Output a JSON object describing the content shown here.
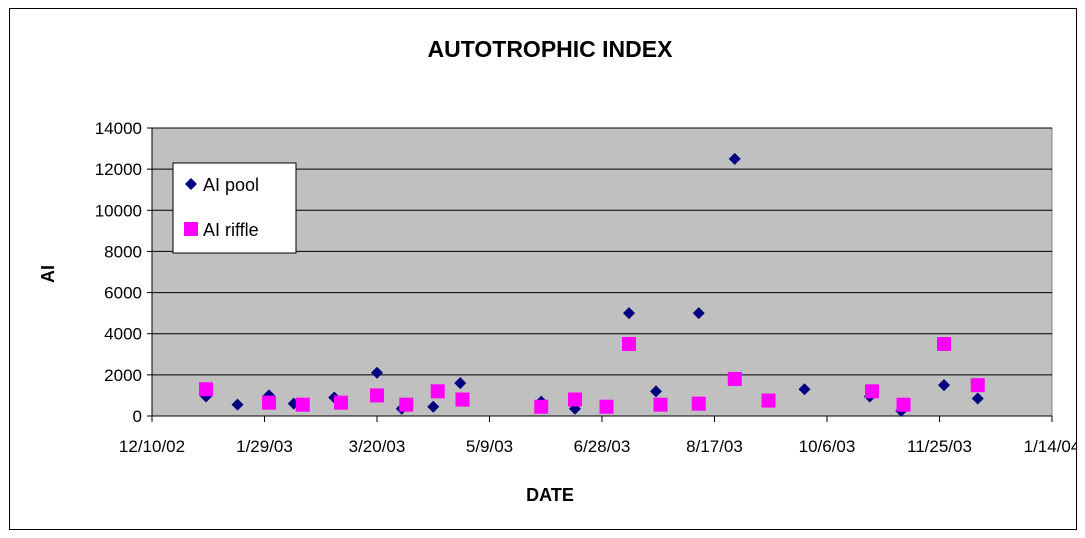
{
  "chart_data": {
    "type": "scatter",
    "title": "AUTOTROPHIC INDEX",
    "xlabel": "DATE",
    "ylabel": "AI",
    "xlim": [
      "2002-12-10",
      "2004-01-14"
    ],
    "ylim": [
      0,
      14000
    ],
    "x_ticks": [
      "2002-12-10",
      "2003-01-29",
      "2003-03-20",
      "2003-05-09",
      "2003-06-28",
      "2003-08-17",
      "2003-10-06",
      "2003-11-25",
      "2004-01-14"
    ],
    "x_tick_labels": [
      "12/10/02",
      "1/29/03",
      "3/20/03",
      "5/9/03",
      "6/28/03",
      "8/17/03",
      "10/6/03",
      "11/25/03",
      "1/14/04"
    ],
    "y_ticks": [
      0,
      2000,
      4000,
      6000,
      8000,
      10000,
      12000,
      14000
    ],
    "y_tick_labels": [
      "0",
      "2000",
      "4000",
      "6000",
      "8000",
      "10000",
      "12000",
      "14000"
    ],
    "grid": "horizontal",
    "plot_background": "#c0c0c0",
    "legend": "top-left",
    "series": [
      {
        "name": "AI pool",
        "marker": "diamond",
        "color": "#000080",
        "points": [
          [
            "2003-01-03",
            950
          ],
          [
            "2003-01-17",
            550
          ],
          [
            "2003-01-31",
            1000
          ],
          [
            "2003-02-11",
            600
          ],
          [
            "2003-03-01",
            900
          ],
          [
            "2003-03-20",
            2100
          ],
          [
            "2003-03-31",
            350
          ],
          [
            "2003-04-14",
            450
          ],
          [
            "2003-04-26",
            1600
          ],
          [
            "2003-06-01",
            700
          ],
          [
            "2003-06-16",
            350
          ],
          [
            "2003-06-30",
            500
          ],
          [
            "2003-07-10",
            5000
          ],
          [
            "2003-07-22",
            1200
          ],
          [
            "2003-08-10",
            5000
          ],
          [
            "2003-08-26",
            12500
          ],
          [
            "2003-09-26",
            1300
          ],
          [
            "2003-10-25",
            950
          ],
          [
            "2003-11-08",
            250
          ],
          [
            "2003-11-27",
            1500
          ],
          [
            "2003-12-12",
            850
          ]
        ]
      },
      {
        "name": "AI riffle",
        "marker": "square",
        "color": "#ff00ff",
        "points": [
          [
            "2003-01-03",
            1300
          ],
          [
            "2003-01-31",
            650
          ],
          [
            "2003-02-15",
            550
          ],
          [
            "2003-03-04",
            650
          ],
          [
            "2003-03-20",
            1000
          ],
          [
            "2003-04-02",
            550
          ],
          [
            "2003-04-16",
            1200
          ],
          [
            "2003-04-27",
            800
          ],
          [
            "2003-06-01",
            450
          ],
          [
            "2003-06-16",
            800
          ],
          [
            "2003-06-30",
            450
          ],
          [
            "2003-07-10",
            3500
          ],
          [
            "2003-07-24",
            550
          ],
          [
            "2003-08-10",
            600
          ],
          [
            "2003-08-26",
            1800
          ],
          [
            "2003-09-10",
            750
          ],
          [
            "2003-10-26",
            1200
          ],
          [
            "2003-11-09",
            550
          ],
          [
            "2003-11-27",
            3500
          ],
          [
            "2003-12-12",
            1500
          ]
        ]
      }
    ]
  }
}
